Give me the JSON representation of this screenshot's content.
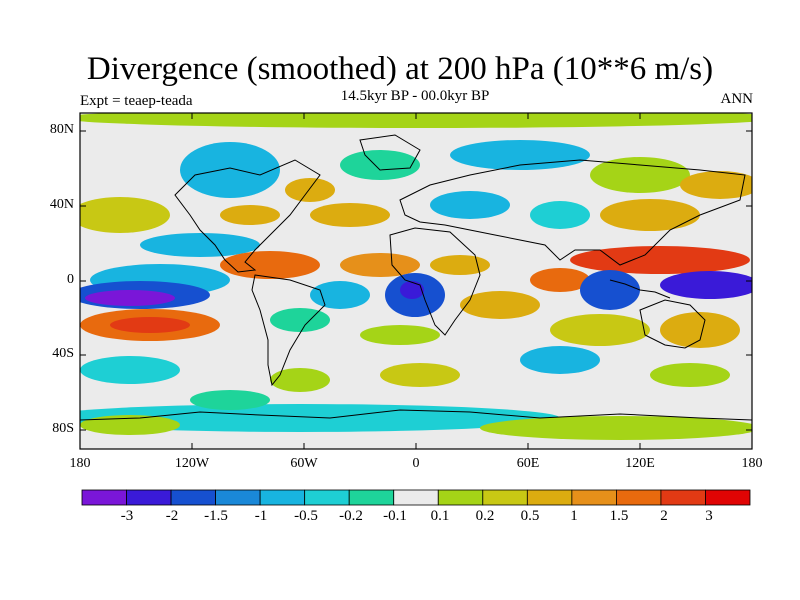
{
  "title": "Divergence (smoothed) at 200 hPa (10**6 m/s)",
  "subtitle": "14.5kyr BP - 00.0kyr BP",
  "left_label": "Expt = teaep-teada",
  "right_label": "ANN",
  "lat_ticks": [
    "80N",
    "40N",
    "0",
    "40S",
    "80S"
  ],
  "lon_ticks": [
    "180",
    "120W",
    "60W",
    "0",
    "60E",
    "120E",
    "180"
  ],
  "colorbar": {
    "labels": [
      "-3",
      "-2",
      "-1.5",
      "-1",
      "-0.5",
      "-0.2",
      "-0.1",
      "0.1",
      "0.2",
      "0.5",
      "1",
      "1.5",
      "2",
      "3"
    ],
    "colors": [
      "#7a16d8",
      "#3a1ad8",
      "#1650d0",
      "#1a88d8",
      "#18b4e0",
      "#1ecfd4",
      "#1ed49a",
      "#ebebeb",
      "#a5d417",
      "#c8c814",
      "#dcac10",
      "#e6901a",
      "#e86a0e",
      "#e23a14",
      "#e00404"
    ]
  },
  "colors": {
    "neutral": "#ebebeb",
    "coast": "#000000",
    "frame": "#000000"
  }
}
